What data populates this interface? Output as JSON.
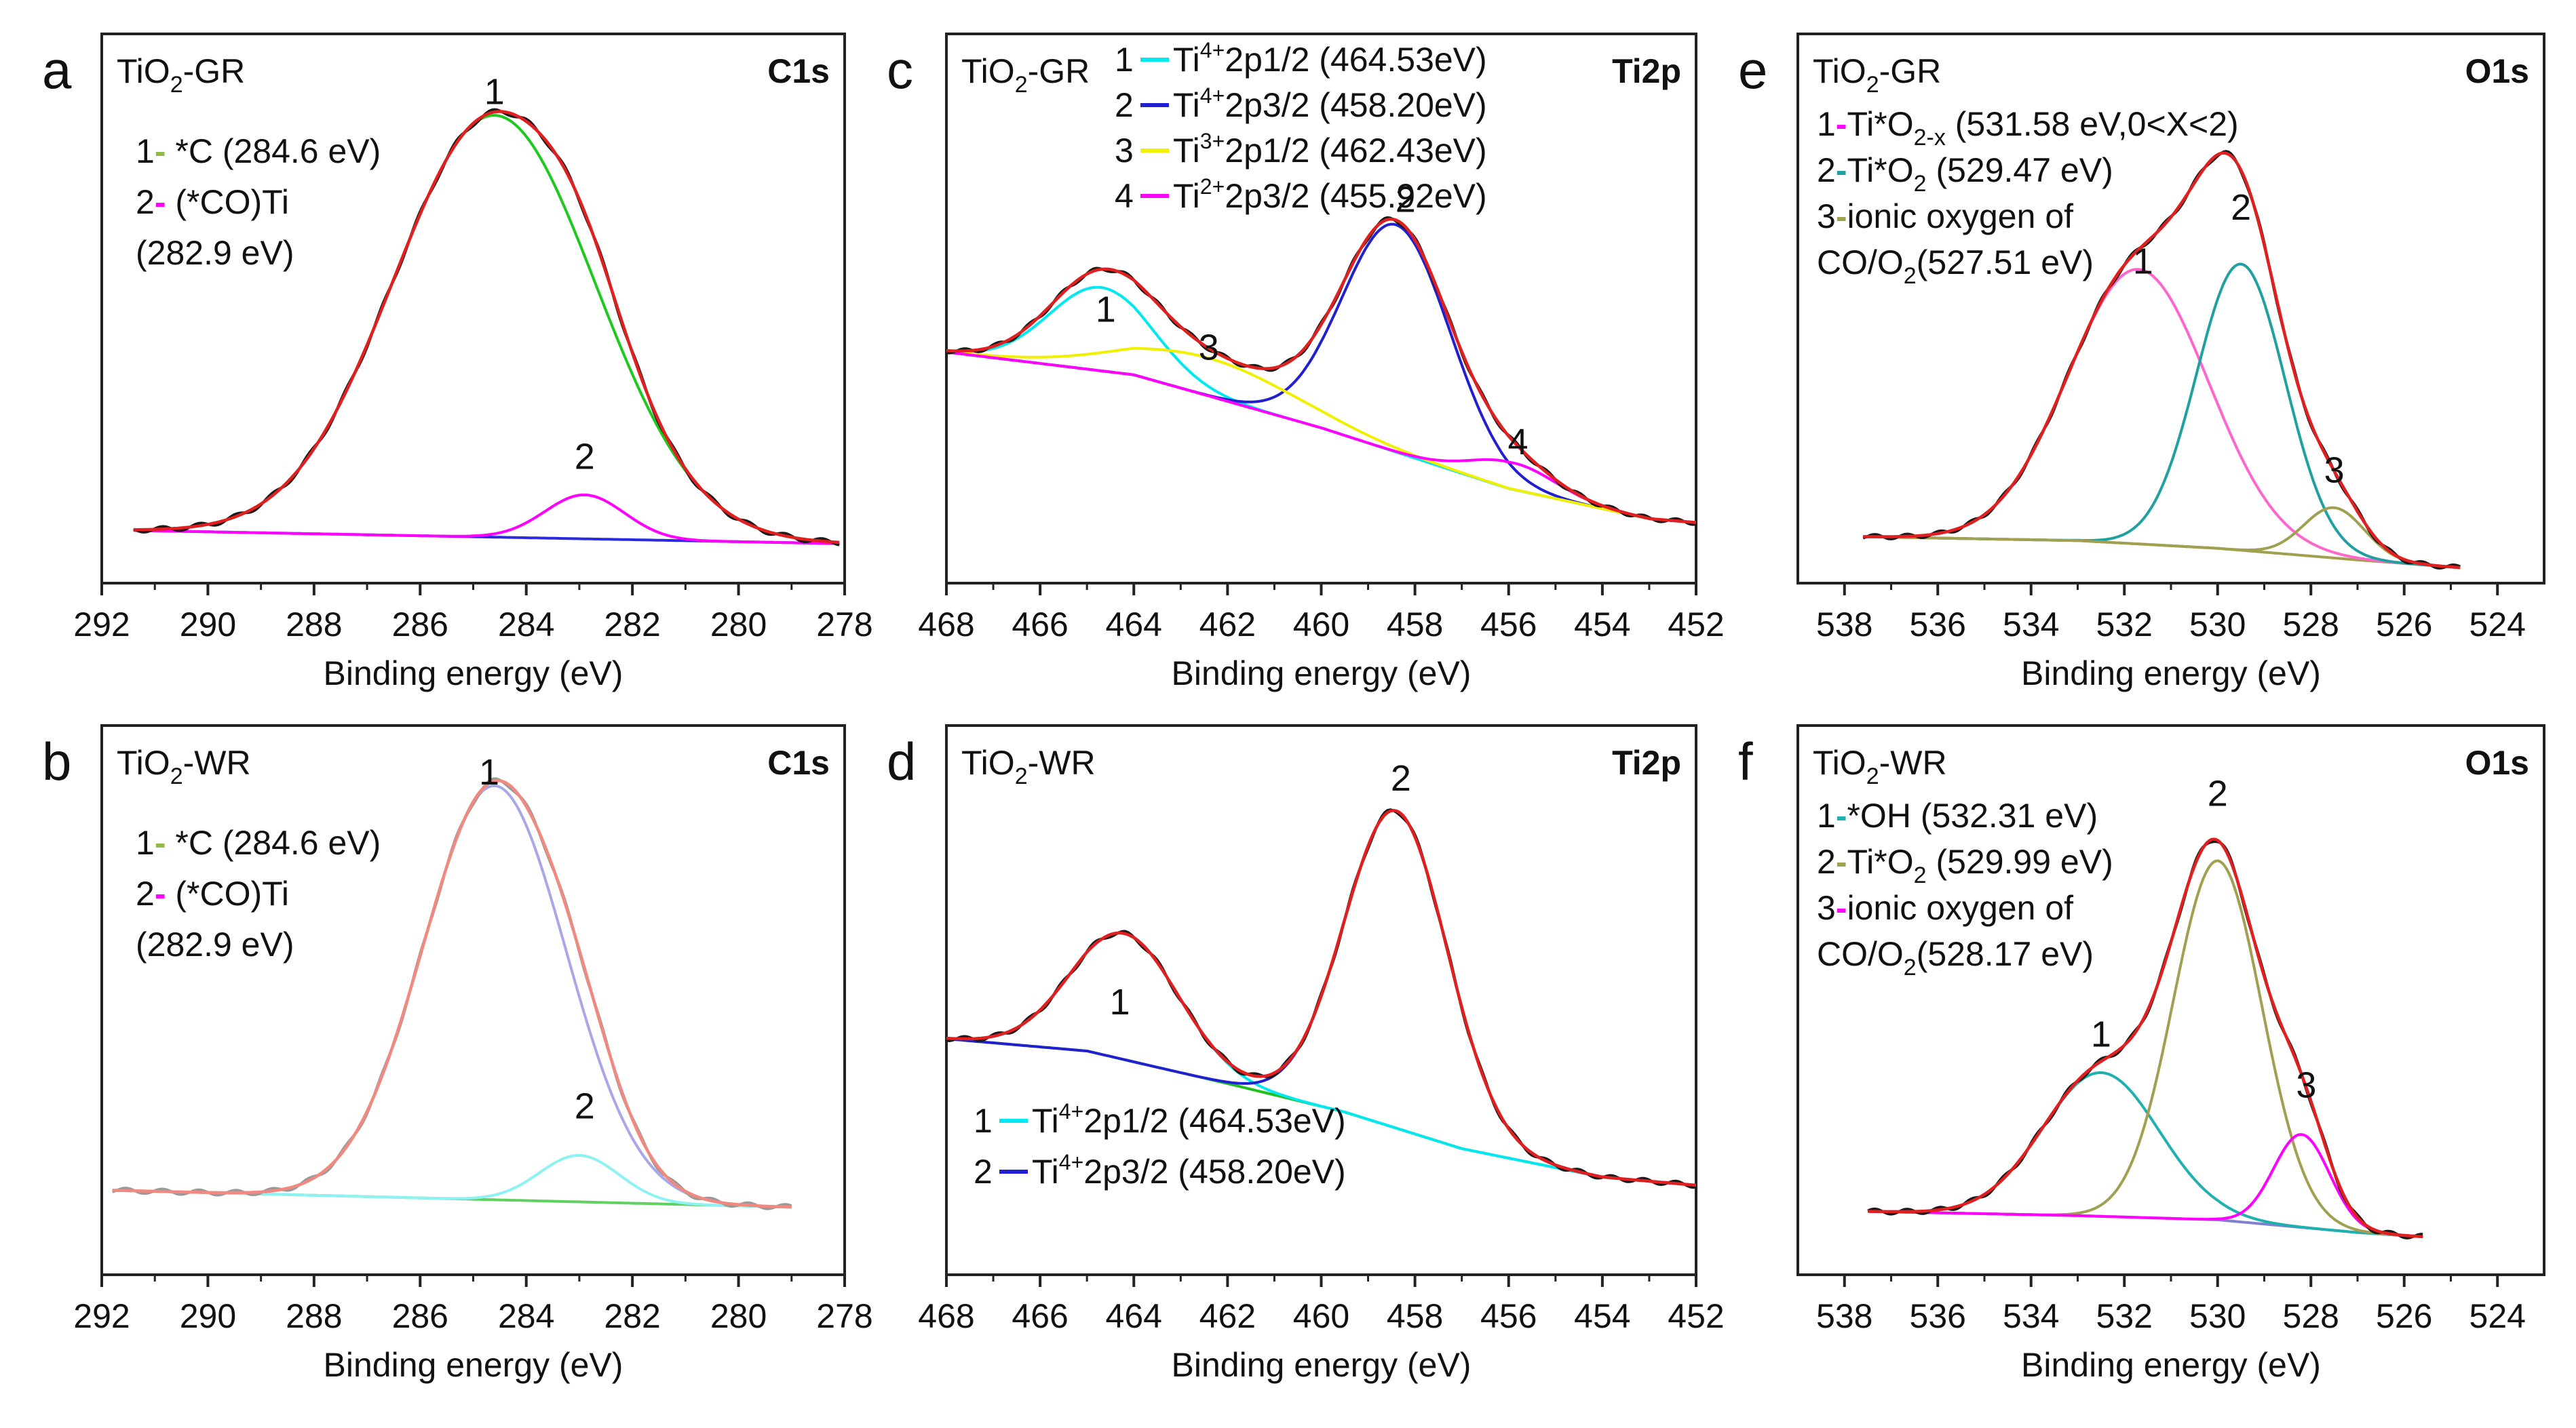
{
  "chart_data": [
    {
      "panel": "a",
      "type": "line",
      "sample": "TiO2-GR",
      "title": "C1s",
      "xlabel": "Binding energy (eV)",
      "ylabel": "",
      "xlim": [
        292,
        278
      ],
      "ylim": [
        -0.1,
        1.15
      ],
      "xticks": [
        "292",
        "290",
        "288",
        "286",
        "284",
        "282",
        "280",
        "278"
      ],
      "legend": [
        {
          "num": "1",
          "color": "#8fbc45",
          "text": "*C (284.6 eV)"
        },
        {
          "num": "2",
          "color": "#ff00ff",
          "text": "(*CO)Ti"
        },
        {
          "num": "",
          "color": "",
          "text": "(282.9 eV)"
        }
      ],
      "annotations": [
        {
          "text": "1",
          "x": 284.6,
          "y": 0.99
        },
        {
          "text": "2",
          "x": 282.9,
          "y": 0.16
        }
      ],
      "background": {
        "x": [
          291.4,
          278.1
        ],
        "y": [
          0.02,
          -0.01
        ]
      },
      "peaks": [
        {
          "name": "1",
          "color": "#1ec81e",
          "center": 284.6,
          "amp": 0.96,
          "sigma": 1.9
        },
        {
          "name": "2",
          "color": "#ff00ff",
          "center": 282.9,
          "amp": 0.1,
          "sigma": 0.75
        }
      ],
      "envelope_color": "#e02020",
      "raw_color": "#1a1a1a",
      "background_color": "#2a2ae0"
    },
    {
      "panel": "b",
      "type": "line",
      "sample": "TiO2-WR",
      "title": "C1s",
      "xlabel": "Binding energy (eV)",
      "ylabel": "",
      "xlim": [
        292,
        278
      ],
      "ylim": [
        -0.2,
        1.1
      ],
      "xticks": [
        "292",
        "290",
        "288",
        "286",
        "284",
        "282",
        "280",
        "278"
      ],
      "legend": [
        {
          "num": "1",
          "color": "#8fbc45",
          "text": "*C (284.6 eV)"
        },
        {
          "num": "2",
          "color": "#ff00ff",
          "text": "(*CO)Ti"
        },
        {
          "num": "",
          "color": "",
          "text": "(282.9 eV)"
        }
      ],
      "annotations": [
        {
          "text": "1",
          "x": 284.7,
          "y": 0.96
        },
        {
          "text": "2",
          "x": 282.9,
          "y": 0.17
        }
      ],
      "background": {
        "x": [
          291.8,
          279.0
        ],
        "y": [
          0.0,
          -0.04
        ]
      },
      "peaks": [
        {
          "name": "1",
          "color": "#a8a8e8",
          "center": 284.6,
          "amp": 0.98,
          "sigma": 1.35
        },
        {
          "name": "2",
          "color": "#8ef2f2",
          "center": 283.0,
          "amp": 0.11,
          "sigma": 0.75
        }
      ],
      "envelope_color": "#f08a80",
      "raw_color": "#9a9a9a",
      "background_color": "#60d060"
    },
    {
      "panel": "c",
      "type": "line",
      "sample": "TiO2-GR",
      "title": "Ti2p",
      "xlabel": "Binding energy (eV)",
      "ylabel": "",
      "xlim": [
        468,
        452
      ],
      "ylim": [
        -0.15,
        1.3
      ],
      "xticks": [
        "468",
        "466",
        "464",
        "462",
        "460",
        "458",
        "456",
        "454",
        "452"
      ],
      "legend": [
        {
          "num": "1",
          "color": "#00e8f0",
          "ion": "Ti",
          "charge": "4+",
          "text": "2p1/2 (464.53eV)"
        },
        {
          "num": "2",
          "color": "#2020d0",
          "ion": "Ti",
          "charge": "4+",
          "text": "2p3/2 (458.20eV)"
        },
        {
          "num": "3",
          "color": "#f0f000",
          "ion": "Ti",
          "charge": "3+",
          "text": "2p1/2 (462.43eV)"
        },
        {
          "num": "4",
          "color": "#ff00ff",
          "ion": "Ti",
          "charge": "2+",
          "text": "2p3/2 (455.92eV)"
        }
      ],
      "annotations": [
        {
          "text": "1",
          "x": 464.6,
          "y": 0.54
        },
        {
          "text": "2",
          "x": 458.2,
          "y": 0.83
        },
        {
          "text": "3",
          "x": 462.4,
          "y": 0.44
        },
        {
          "text": "4",
          "x": 455.8,
          "y": 0.19
        }
      ],
      "background": {
        "x": [
          468.0,
          464.0,
          460.0,
          456.0,
          453.0,
          452.0
        ],
        "y": [
          0.46,
          0.4,
          0.26,
          0.1,
          0.02,
          0.01
        ]
      },
      "peaks": [
        {
          "name": "1",
          "color": "#00e8f0",
          "center": 464.7,
          "amp": 0.22,
          "sigma": 1.1
        },
        {
          "name": "2",
          "color": "#2020d0",
          "center": 458.4,
          "amp": 0.6,
          "sigma": 1.15
        },
        {
          "name": "3",
          "color": "#f0f000",
          "center": 462.4,
          "amp": 0.1,
          "sigma": 1.9
        },
        {
          "name": "4",
          "color": "#ff00ff",
          "center": 455.9,
          "amp": 0.07,
          "sigma": 0.9
        }
      ],
      "envelope_color": "#e02020",
      "raw_color": "#1a1a1a",
      "background_color": "#a0d040"
    },
    {
      "panel": "d",
      "type": "line",
      "sample": "TiO2-WR",
      "title": "Ti2p",
      "xlabel": "Binding energy (eV)",
      "ylabel": "",
      "xlim": [
        468,
        452
      ],
      "ylim": [
        -0.2,
        1.15
      ],
      "xticks": [
        "468",
        "466",
        "464",
        "462",
        "460",
        "458",
        "456",
        "454",
        "452"
      ],
      "legend": [
        {
          "num": "1",
          "color": "#00e8f0",
          "ion": "Ti",
          "charge": "4+",
          "text": "2p1/2 (464.53eV)"
        },
        {
          "num": "2",
          "color": "#2020d0",
          "ion": "Ti",
          "charge": "4+",
          "text": "2p3/2 (458.20eV)"
        }
      ],
      "annotations": [
        {
          "text": "1",
          "x": 464.3,
          "y": 0.44
        },
        {
          "text": "2",
          "x": 458.3,
          "y": 0.99
        }
      ],
      "background": {
        "x": [
          468.0,
          465.0,
          462.0,
          459.5,
          457.0,
          454.0,
          452.0
        ],
        "y": [
          0.38,
          0.35,
          0.27,
          0.2,
          0.11,
          0.04,
          0.02
        ]
      },
      "peaks": [
        {
          "name": "1",
          "color": "#00e8f0",
          "center": 464.2,
          "amp": 0.31,
          "sigma": 1.15
        },
        {
          "name": "2",
          "color": "#2020d0",
          "center": 458.4,
          "amp": 0.78,
          "sigma": 1.1
        }
      ],
      "envelope_color": "#e02020",
      "raw_color": "#1a1a1a",
      "background_color": "#20c020"
    },
    {
      "panel": "e",
      "type": "line",
      "sample": "TiO2-GR",
      "title": "O1s",
      "xlabel": "Binding energy (eV)",
      "ylabel": "",
      "xlim": [
        539,
        523
      ],
      "ylim": [
        -0.12,
        1.3
      ],
      "xticks": [
        "538",
        "536",
        "534",
        "532",
        "530",
        "528",
        "526",
        "524"
      ],
      "legend": [
        {
          "num": "1",
          "color": "#ff00ff",
          "text": "Ti*O",
          "sub": "2-x",
          "after": " (531.58 eV,0<X<2)"
        },
        {
          "num": "2",
          "color": "#20a0a0",
          "text": "Ti*O",
          "sub": "2",
          "after": "  (529.47 eV)"
        },
        {
          "num": "3",
          "color": "#a0a050",
          "text": "ionic oxygen of",
          "sub": "",
          "after": ""
        },
        {
          "num": "",
          "color": "",
          "text": "CO/O",
          "sub": "2",
          "after": "(527.51 eV)"
        }
      ],
      "annotations": [
        {
          "text": "1",
          "x": 531.6,
          "y": 0.68
        },
        {
          "text": "2",
          "x": 529.5,
          "y": 0.82
        },
        {
          "text": "3",
          "x": 527.5,
          "y": 0.14
        }
      ],
      "background": {
        "x": [
          537.6,
          533.0,
          530.0,
          527.0,
          524.8
        ],
        "y": [
          0.0,
          -0.01,
          -0.03,
          -0.06,
          -0.08
        ]
      },
      "peaks": [
        {
          "name": "1",
          "color": "#ff66cc",
          "center": 531.7,
          "amp": 0.71,
          "sigma": 1.5
        },
        {
          "name": "2",
          "color": "#20a0a0",
          "center": 529.5,
          "amp": 0.74,
          "sigma": 0.95
        },
        {
          "name": "3",
          "color": "#a0a050",
          "center": 527.5,
          "amp": 0.13,
          "sigma": 0.65
        }
      ],
      "envelope_color": "#e02020",
      "raw_color": "#1a1a1a",
      "background_color": "#a0a050"
    },
    {
      "panel": "f",
      "type": "line",
      "sample": "TiO2-WR",
      "title": "O1s",
      "xlabel": "Binding energy (eV)",
      "ylabel": "",
      "xlim": [
        539,
        523
      ],
      "ylim": [
        -0.15,
        1.15
      ],
      "xticks": [
        "538",
        "536",
        "534",
        "532",
        "530",
        "528",
        "526",
        "524"
      ],
      "legend": [
        {
          "num": "1",
          "color": "#20b0b0",
          "text": "*OH",
          "sub": "",
          "after": "  (532.31 eV)"
        },
        {
          "num": "2",
          "color": "#a0a050",
          "text": "Ti*O",
          "sub": "2",
          "after": "  (529.99 eV)"
        },
        {
          "num": "3",
          "color": "#ff00ff",
          "text": "ionic oxygen of",
          "sub": "",
          "after": ""
        },
        {
          "num": "",
          "color": "",
          "text": "CO/O",
          "sub": "2",
          "after": "(528.17 eV)"
        }
      ],
      "annotations": [
        {
          "text": "1",
          "x": 532.5,
          "y": 0.39
        },
        {
          "text": "2",
          "x": 530.0,
          "y": 0.96
        },
        {
          "text": "3",
          "x": 528.1,
          "y": 0.27
        }
      ],
      "background": {
        "x": [
          537.5,
          533.0,
          530.0,
          527.0,
          525.6
        ],
        "y": [
          0.0,
          -0.01,
          -0.02,
          -0.05,
          -0.06
        ]
      },
      "peaks": [
        {
          "name": "1",
          "color": "#20b0b0",
          "center": 532.5,
          "amp": 0.34,
          "sigma": 1.25
        },
        {
          "name": "2",
          "color": "#a0a050",
          "center": 530.0,
          "amp": 0.85,
          "sigma": 0.95
        },
        {
          "name": "3",
          "color": "#ff00ff",
          "center": 528.2,
          "amp": 0.22,
          "sigma": 0.6
        }
      ],
      "envelope_color": "#e02020",
      "raw_color": "#1a1a1a",
      "background_color": "#8080d0"
    }
  ]
}
